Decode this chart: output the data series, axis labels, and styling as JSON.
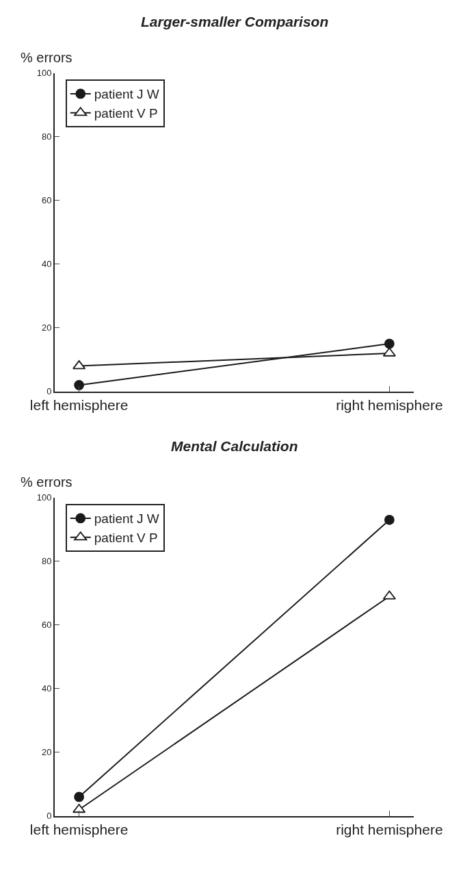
{
  "chart_data": [
    {
      "type": "line",
      "title": "Larger-smaller Comparison",
      "ylabel": "% errors",
      "categories": [
        "left hemisphere",
        "right hemisphere"
      ],
      "ylim": [
        0,
        100
      ],
      "yticks": [
        0,
        20,
        40,
        60,
        80,
        100
      ],
      "legend": "top left",
      "series": [
        {
          "name": "patient J W",
          "color": "#1a1a1a",
          "marker": "circle",
          "values": [
            2,
            15
          ]
        },
        {
          "name": "patient V P",
          "color": "#1a1a1a",
          "marker": "triangle",
          "values": [
            8,
            12
          ]
        }
      ]
    },
    {
      "type": "line",
      "title": "Mental Calculation",
      "ylabel": "% errors",
      "categories": [
        "left hemisphere",
        "right hemisphere"
      ],
      "ylim": [
        0,
        100
      ],
      "yticks": [
        0,
        20,
        40,
        60,
        80,
        100
      ],
      "legend": "top left",
      "series": [
        {
          "name": "patient J W",
          "color": "#1a1a1a",
          "marker": "circle",
          "values": [
            6,
            93
          ]
        },
        {
          "name": "patient V P",
          "color": "#1a1a1a",
          "marker": "triangle",
          "values": [
            2,
            69
          ]
        }
      ]
    }
  ]
}
